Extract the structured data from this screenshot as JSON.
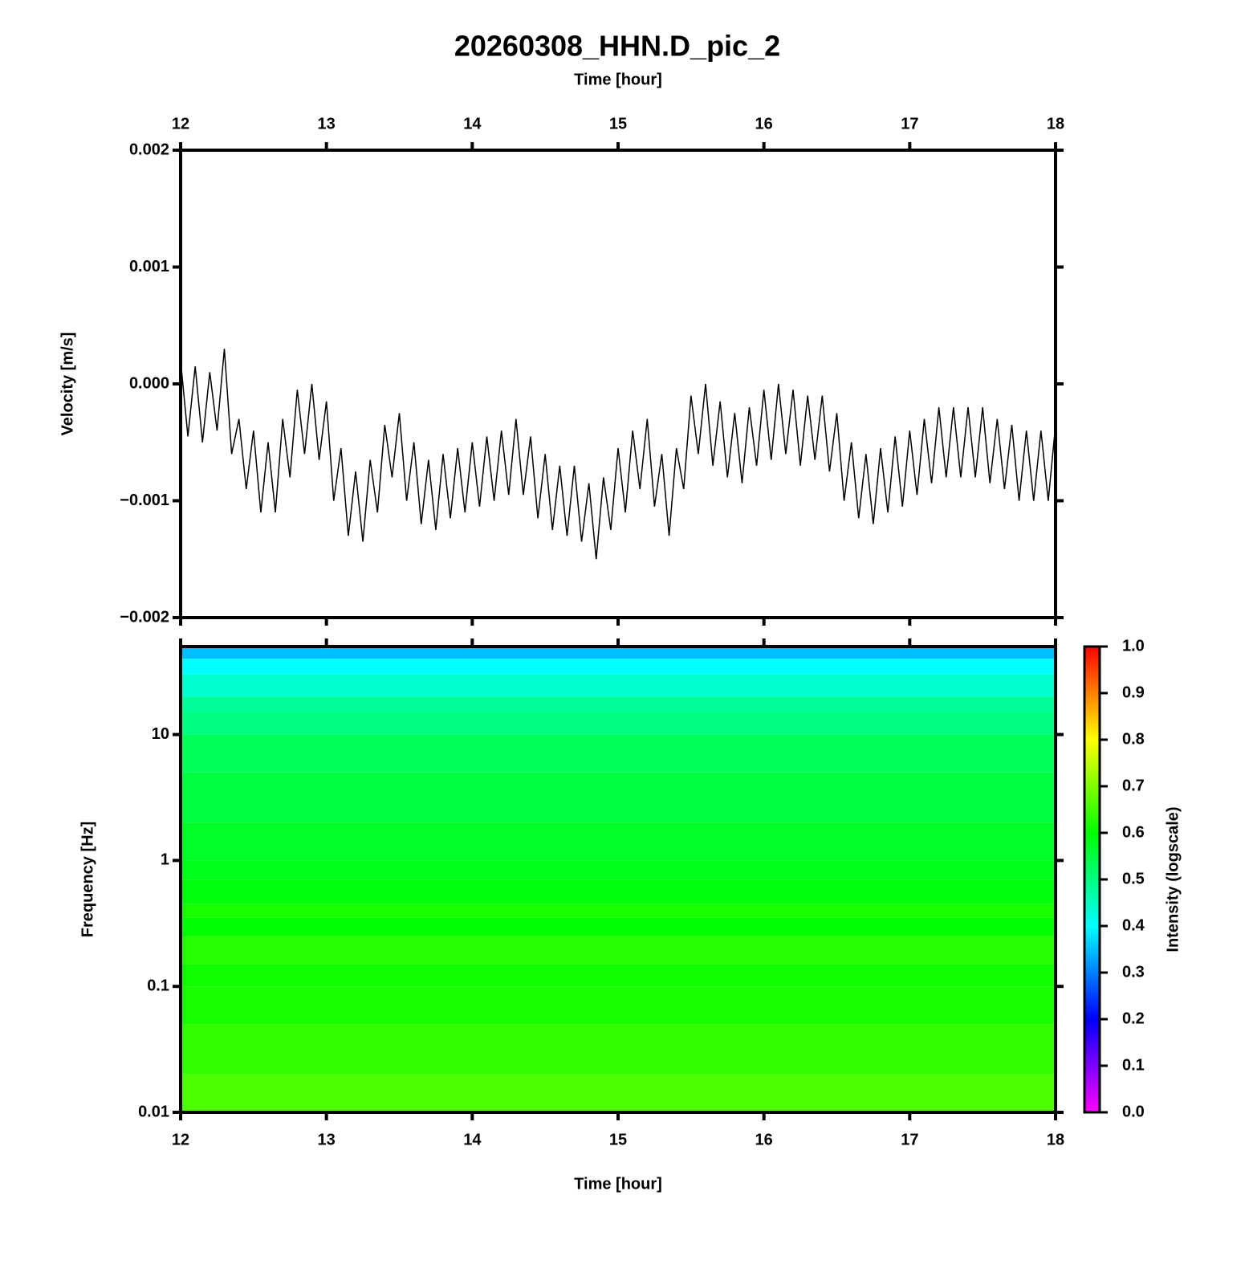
{
  "chart_data": [
    {
      "type": "line",
      "title": "20260308_HHN.D_pic_2",
      "xlabel": "Time [hour]",
      "ylabel": "Velocity [m/s]",
      "xlim": [
        12,
        18
      ],
      "xticks": [
        12,
        13,
        14,
        15,
        16,
        17,
        18
      ],
      "ylim": [
        -0.002,
        0.002
      ],
      "yticks": [
        {
          "value": -0.002,
          "label": "−0.002"
        },
        {
          "value": -0.001,
          "label": "−0.001"
        },
        {
          "value": 0,
          "label": "0.000"
        },
        0.001,
        0.002
      ],
      "color": "#000000",
      "x": [
        12,
        12.05,
        12.1,
        12.15,
        12.2,
        12.25,
        12.3,
        12.35,
        12.4,
        12.45,
        12.5,
        12.55,
        12.6,
        12.65,
        12.7,
        12.75,
        12.8,
        12.85,
        12.9,
        12.95,
        13,
        13.05,
        13.1,
        13.15,
        13.2,
        13.25,
        13.3,
        13.35,
        13.4,
        13.45,
        13.5,
        13.55,
        13.6,
        13.65,
        13.7,
        13.75,
        13.8,
        13.85,
        13.9,
        13.95,
        14,
        14.05,
        14.1,
        14.15,
        14.2,
        14.25,
        14.3,
        14.35,
        14.4,
        14.45,
        14.5,
        14.55,
        14.6,
        14.65,
        14.7,
        14.75,
        14.8,
        14.85,
        14.9,
        14.95,
        15,
        15.05,
        15.1,
        15.15,
        15.2,
        15.25,
        15.3,
        15.35,
        15.4,
        15.45,
        15.5,
        15.55,
        15.6,
        15.65,
        15.7,
        15.75,
        15.8,
        15.85,
        15.9,
        15.95,
        16,
        16.05,
        16.1,
        16.15,
        16.2,
        16.25,
        16.3,
        16.35,
        16.4,
        16.45,
        16.5,
        16.55,
        16.6,
        16.65,
        16.7,
        16.75,
        16.8,
        16.85,
        16.9,
        16.95,
        17,
        17.05,
        17.1,
        17.15,
        17.2,
        17.25,
        17.3,
        17.35,
        17.4,
        17.45,
        17.5,
        17.55,
        17.6,
        17.65,
        17.7,
        17.75,
        17.8,
        17.85,
        17.9,
        17.95,
        18
      ],
      "values": [
        0.0002,
        -0.00045,
        0.00015,
        -0.0005,
        0.0001,
        -0.0004,
        0.0003,
        -0.0006,
        -0.0003,
        -0.0009,
        -0.0004,
        -0.0011,
        -0.0005,
        -0.0011,
        -0.0003,
        -0.0008,
        -5e-05,
        -0.0006,
        0,
        -0.00065,
        -0.00015,
        -0.001,
        -0.00055,
        -0.0013,
        -0.00075,
        -0.00135,
        -0.00065,
        -0.0011,
        -0.00035,
        -0.0008,
        -0.00025,
        -0.001,
        -0.0005,
        -0.0012,
        -0.00065,
        -0.00125,
        -0.0006,
        -0.00115,
        -0.00055,
        -0.0011,
        -0.0005,
        -0.00105,
        -0.00045,
        -0.001,
        -0.0004,
        -0.00095,
        -0.0003,
        -0.00095,
        -0.00045,
        -0.00115,
        -0.0006,
        -0.00125,
        -0.0007,
        -0.0013,
        -0.0007,
        -0.00135,
        -0.00085,
        -0.0015,
        -0.0008,
        -0.00125,
        -0.00055,
        -0.0011,
        -0.0004,
        -0.0009,
        -0.0003,
        -0.00105,
        -0.0006,
        -0.0013,
        -0.00055,
        -0.0009,
        -0.0001,
        -0.0006,
        0,
        -0.0007,
        -0.00015,
        -0.0008,
        -0.00025,
        -0.00085,
        -0.0002,
        -0.0007,
        -5e-05,
        -0.00065,
        0,
        -0.0006,
        -5e-05,
        -0.0007,
        -0.0001,
        -0.00065,
        -0.0001,
        -0.00075,
        -0.00025,
        -0.001,
        -0.0005,
        -0.00115,
        -0.0006,
        -0.0012,
        -0.00055,
        -0.0011,
        -0.00045,
        -0.00105,
        -0.0004,
        -0.00095,
        -0.0003,
        -0.00085,
        -0.0002,
        -0.0008,
        -0.0002,
        -0.0008,
        -0.0002,
        -0.0008,
        -0.0002,
        -0.00085,
        -0.0003,
        -0.0009,
        -0.00035,
        -0.001,
        -0.0004,
        -0.001,
        -0.0004,
        -0.001,
        -0.00035
      ]
    },
    {
      "type": "heatmap",
      "xlabel": "Time [hour]",
      "ylabel": "Frequency [Hz]",
      "xlim": [
        12,
        18
      ],
      "xticks": [
        12,
        13,
        14,
        15,
        16,
        17,
        18
      ],
      "ylim": [
        0.01,
        50
      ],
      "ylog": true,
      "yticks": [
        0.01,
        0.1,
        1,
        10
      ],
      "ybins": [
        0.01,
        0.02,
        0.05,
        0.1,
        0.15,
        0.25,
        0.35,
        0.45,
        0.7,
        1,
        2,
        5,
        10,
        15,
        20,
        30,
        40,
        50
      ],
      "values": [
        0.66,
        0.64,
        0.62,
        0.61,
        0.63,
        0.6,
        0.62,
        0.59,
        0.58,
        0.57,
        0.55,
        0.53,
        0.5,
        0.48,
        0.44,
        0.4,
        0.35
      ],
      "colormap": [
        "#ff00ff",
        "#0000ff",
        "#00ffff",
        "#00ff00",
        "#ffff00",
        "#ff0000"
      ],
      "clim": [
        0,
        1
      ],
      "clabel": "Intensity (logscale)",
      "cticks": [
        {
          "value": 0,
          "label": "0.0"
        },
        0.1,
        0.2,
        0.3,
        0.4,
        0.5,
        0.6,
        0.7,
        0.8,
        0.9,
        {
          "value": 1,
          "label": "1.0"
        }
      ]
    }
  ]
}
